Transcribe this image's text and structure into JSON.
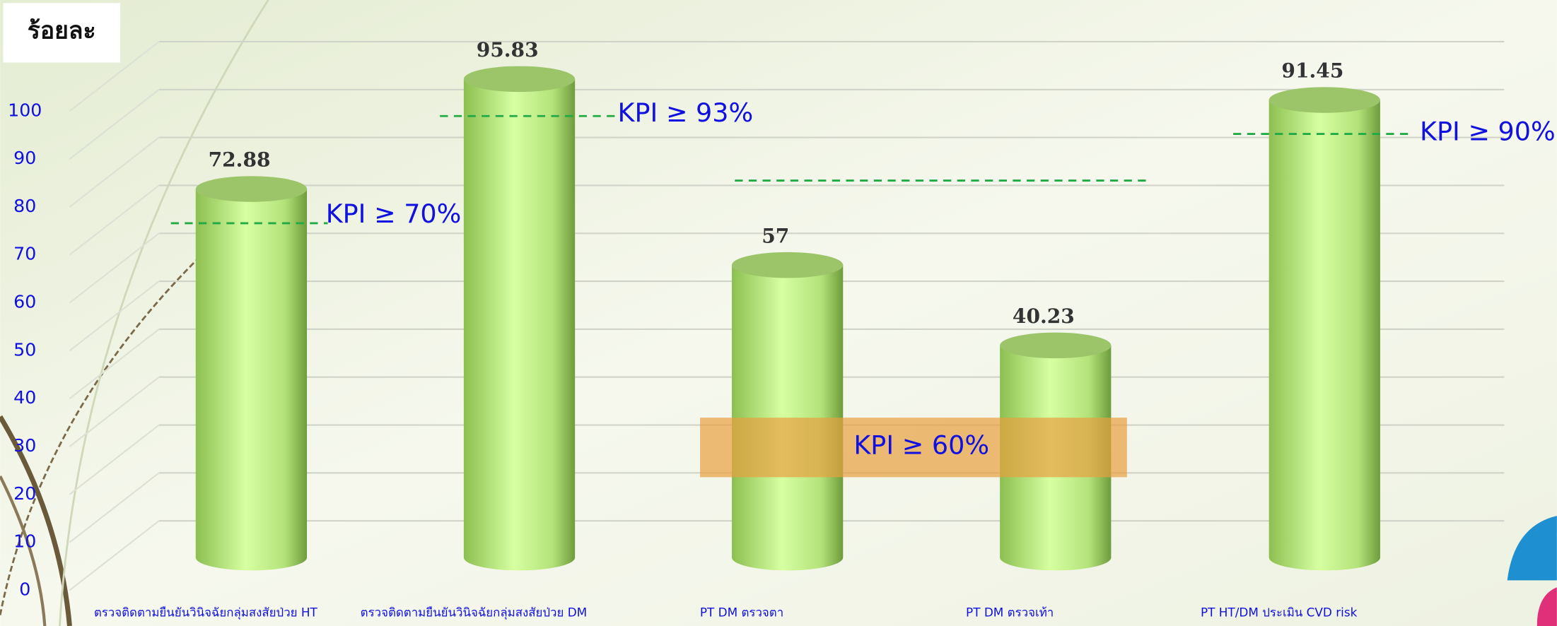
{
  "chart_data": {
    "type": "bar",
    "y_label": "ร้อยละ",
    "categories": [
      "ตรวจติดตามยืนยันวินิจฉัยกลุ่มสงสัยป่วย HT",
      "ตรวจติดตามยืนยันวินิจฉัยกลุ่มสงสัยป่วย DM",
      "PT DM ตรวจตา",
      "PT DM ตรวจเท้า",
      "PT HT/DM ประเมิน CVD risk"
    ],
    "values": [
      72.88,
      95.83,
      57,
      40.23,
      91.45
    ],
    "color": "#b8e878",
    "ylim": [
      0,
      100
    ],
    "yticks": [
      0,
      10,
      20,
      30,
      40,
      50,
      60,
      70,
      80,
      90,
      100
    ],
    "grid": true,
    "annotations": [
      "KPI ≥ 70%",
      "KPI ≥ 93%",
      "KPI ≥ 60%",
      "KPI ≥ 90%"
    ]
  }
}
